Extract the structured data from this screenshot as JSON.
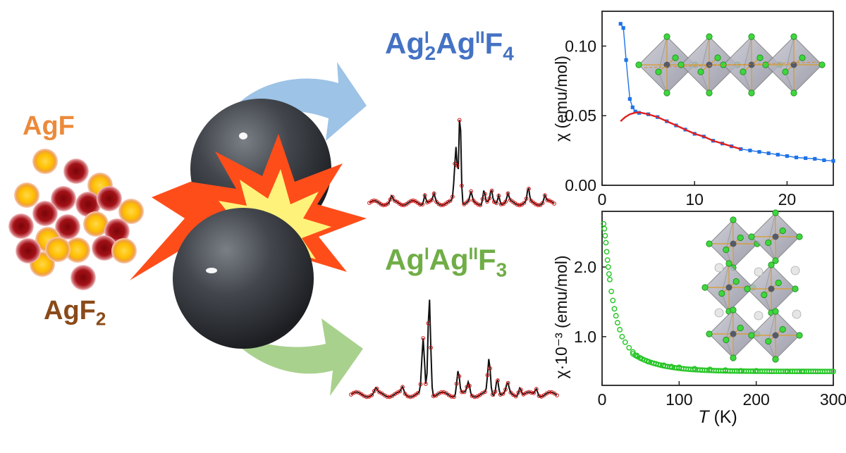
{
  "labels": {
    "agf": "AgF",
    "agf2_base": "AgF",
    "agf2_sub": "2",
    "product1": {
      "a": "Ag",
      "sup1": "I",
      "sub1": "2",
      "b": "Ag",
      "sup2": "II",
      "c": "F",
      "sub2": "4"
    },
    "product2": {
      "a": "Ag",
      "sup1": "I",
      "b": "Ag",
      "sup2": "II",
      "c": "F",
      "sub2": "3"
    }
  },
  "colors": {
    "agf_label": "#ec8a3a",
    "agf2_label": "#8a4a18",
    "product1_label": "#4472c4",
    "product2_label": "#70ad47",
    "arrow_blue": "#9dc3e6",
    "arrow_green": "#a9d18e",
    "particle_yellow": "#ffc000",
    "particle_red": "#9b0f14",
    "explosion_outer": "#ff4d1a",
    "explosion_inner": "#fff27a",
    "ball": "#3b3f45",
    "series_blue": "#1e73e8",
    "series_red": "#e02020",
    "series_green": "#22c422"
  },
  "chart_data": [
    {
      "type": "scatter",
      "title": "",
      "xlabel": "",
      "ylabel": "χ (emu/mol)",
      "xlim": [
        0,
        25
      ],
      "ylim": [
        0,
        0.125
      ],
      "xticks": [
        "0",
        "10",
        "20"
      ],
      "yticks": [
        "0.00",
        "0.05",
        "0.10"
      ],
      "series": [
        {
          "kind": "markers+line",
          "color": "blue",
          "x": [
            2.0,
            2.3,
            2.6,
            3.0,
            3.3,
            3.6,
            4.0,
            5,
            6,
            7,
            8,
            9,
            10,
            11,
            12,
            13,
            14,
            15,
            16,
            17,
            18,
            19,
            20,
            21,
            22,
            23,
            24,
            25
          ],
          "y": [
            0.116,
            0.113,
            0.09,
            0.062,
            0.056,
            0.053,
            0.052,
            0.051,
            0.049,
            0.046,
            0.043,
            0.04,
            0.037,
            0.035,
            0.032,
            0.03,
            0.028,
            0.026,
            0.025,
            0.024,
            0.023,
            0.022,
            0.021,
            0.02,
            0.0195,
            0.019,
            0.018,
            0.0175
          ]
        },
        {
          "kind": "line",
          "color": "red",
          "x": [
            2.0,
            2.5,
            3.0,
            3.5,
            4.0,
            5,
            6,
            7,
            8,
            9,
            10,
            11,
            12,
            13,
            14,
            15
          ],
          "y": [
            0.046,
            0.049,
            0.051,
            0.052,
            0.0525,
            0.051,
            0.049,
            0.046,
            0.043,
            0.04,
            0.037,
            0.035,
            0.032,
            0.03,
            0.028,
            0.026
          ]
        }
      ]
    },
    {
      "type": "scatter",
      "title": "",
      "xlabel": "T (K)",
      "xlabel_italic": "T",
      "xlabel_rest": " (K)",
      "ylabel": "χ·10⁻³ (emu/mol)",
      "xlim": [
        0,
        300
      ],
      "ylim": [
        0.3,
        2.8
      ],
      "xticks": [
        "0",
        "100",
        "200",
        "300"
      ],
      "yticks": [
        "1.0",
        "2.0"
      ],
      "series": [
        {
          "kind": "markers",
          "color": "green",
          "x": [
            2,
            3,
            4,
            5,
            6,
            7,
            8,
            9,
            10,
            12,
            14,
            16,
            18,
            20,
            23,
            26,
            30,
            35,
            40,
            45,
            50,
            60,
            70,
            80,
            90,
            100,
            120,
            140,
            160,
            180,
            200,
            220,
            240,
            260,
            280,
            300
          ],
          "y": [
            2.62,
            2.55,
            2.45,
            2.35,
            2.22,
            2.1,
            2.0,
            1.9,
            1.82,
            1.65,
            1.52,
            1.4,
            1.3,
            1.2,
            1.1,
            1.0,
            0.92,
            0.84,
            0.78,
            0.73,
            0.69,
            0.64,
            0.61,
            0.59,
            0.57,
            0.56,
            0.54,
            0.53,
            0.52,
            0.51,
            0.51,
            0.5,
            0.5,
            0.5,
            0.5,
            0.5
          ]
        }
      ]
    }
  ],
  "xrd_patterns": [
    {
      "name": "pattern-top",
      "peaks": [
        [
          0.12,
          0.06
        ],
        [
          0.3,
          0.1
        ],
        [
          0.35,
          0.08
        ],
        [
          0.46,
          0.2
        ],
        [
          0.47,
          0.55
        ],
        [
          0.49,
          1.0
        ],
        [
          0.55,
          0.1
        ],
        [
          0.62,
          0.15
        ],
        [
          0.66,
          0.12
        ],
        [
          0.7,
          0.1
        ],
        [
          0.75,
          0.08
        ],
        [
          0.86,
          0.14
        ],
        [
          0.95,
          0.07
        ]
      ]
    },
    {
      "name": "pattern-bottom",
      "peaks": [
        [
          0.12,
          0.05
        ],
        [
          0.25,
          0.06
        ],
        [
          0.35,
          0.55
        ],
        [
          0.38,
          1.0
        ],
        [
          0.52,
          0.25
        ],
        [
          0.57,
          0.12
        ],
        [
          0.67,
          0.35
        ],
        [
          0.71,
          0.18
        ],
        [
          0.76,
          0.1
        ],
        [
          0.82,
          0.09
        ],
        [
          0.9,
          0.07
        ]
      ]
    }
  ]
}
